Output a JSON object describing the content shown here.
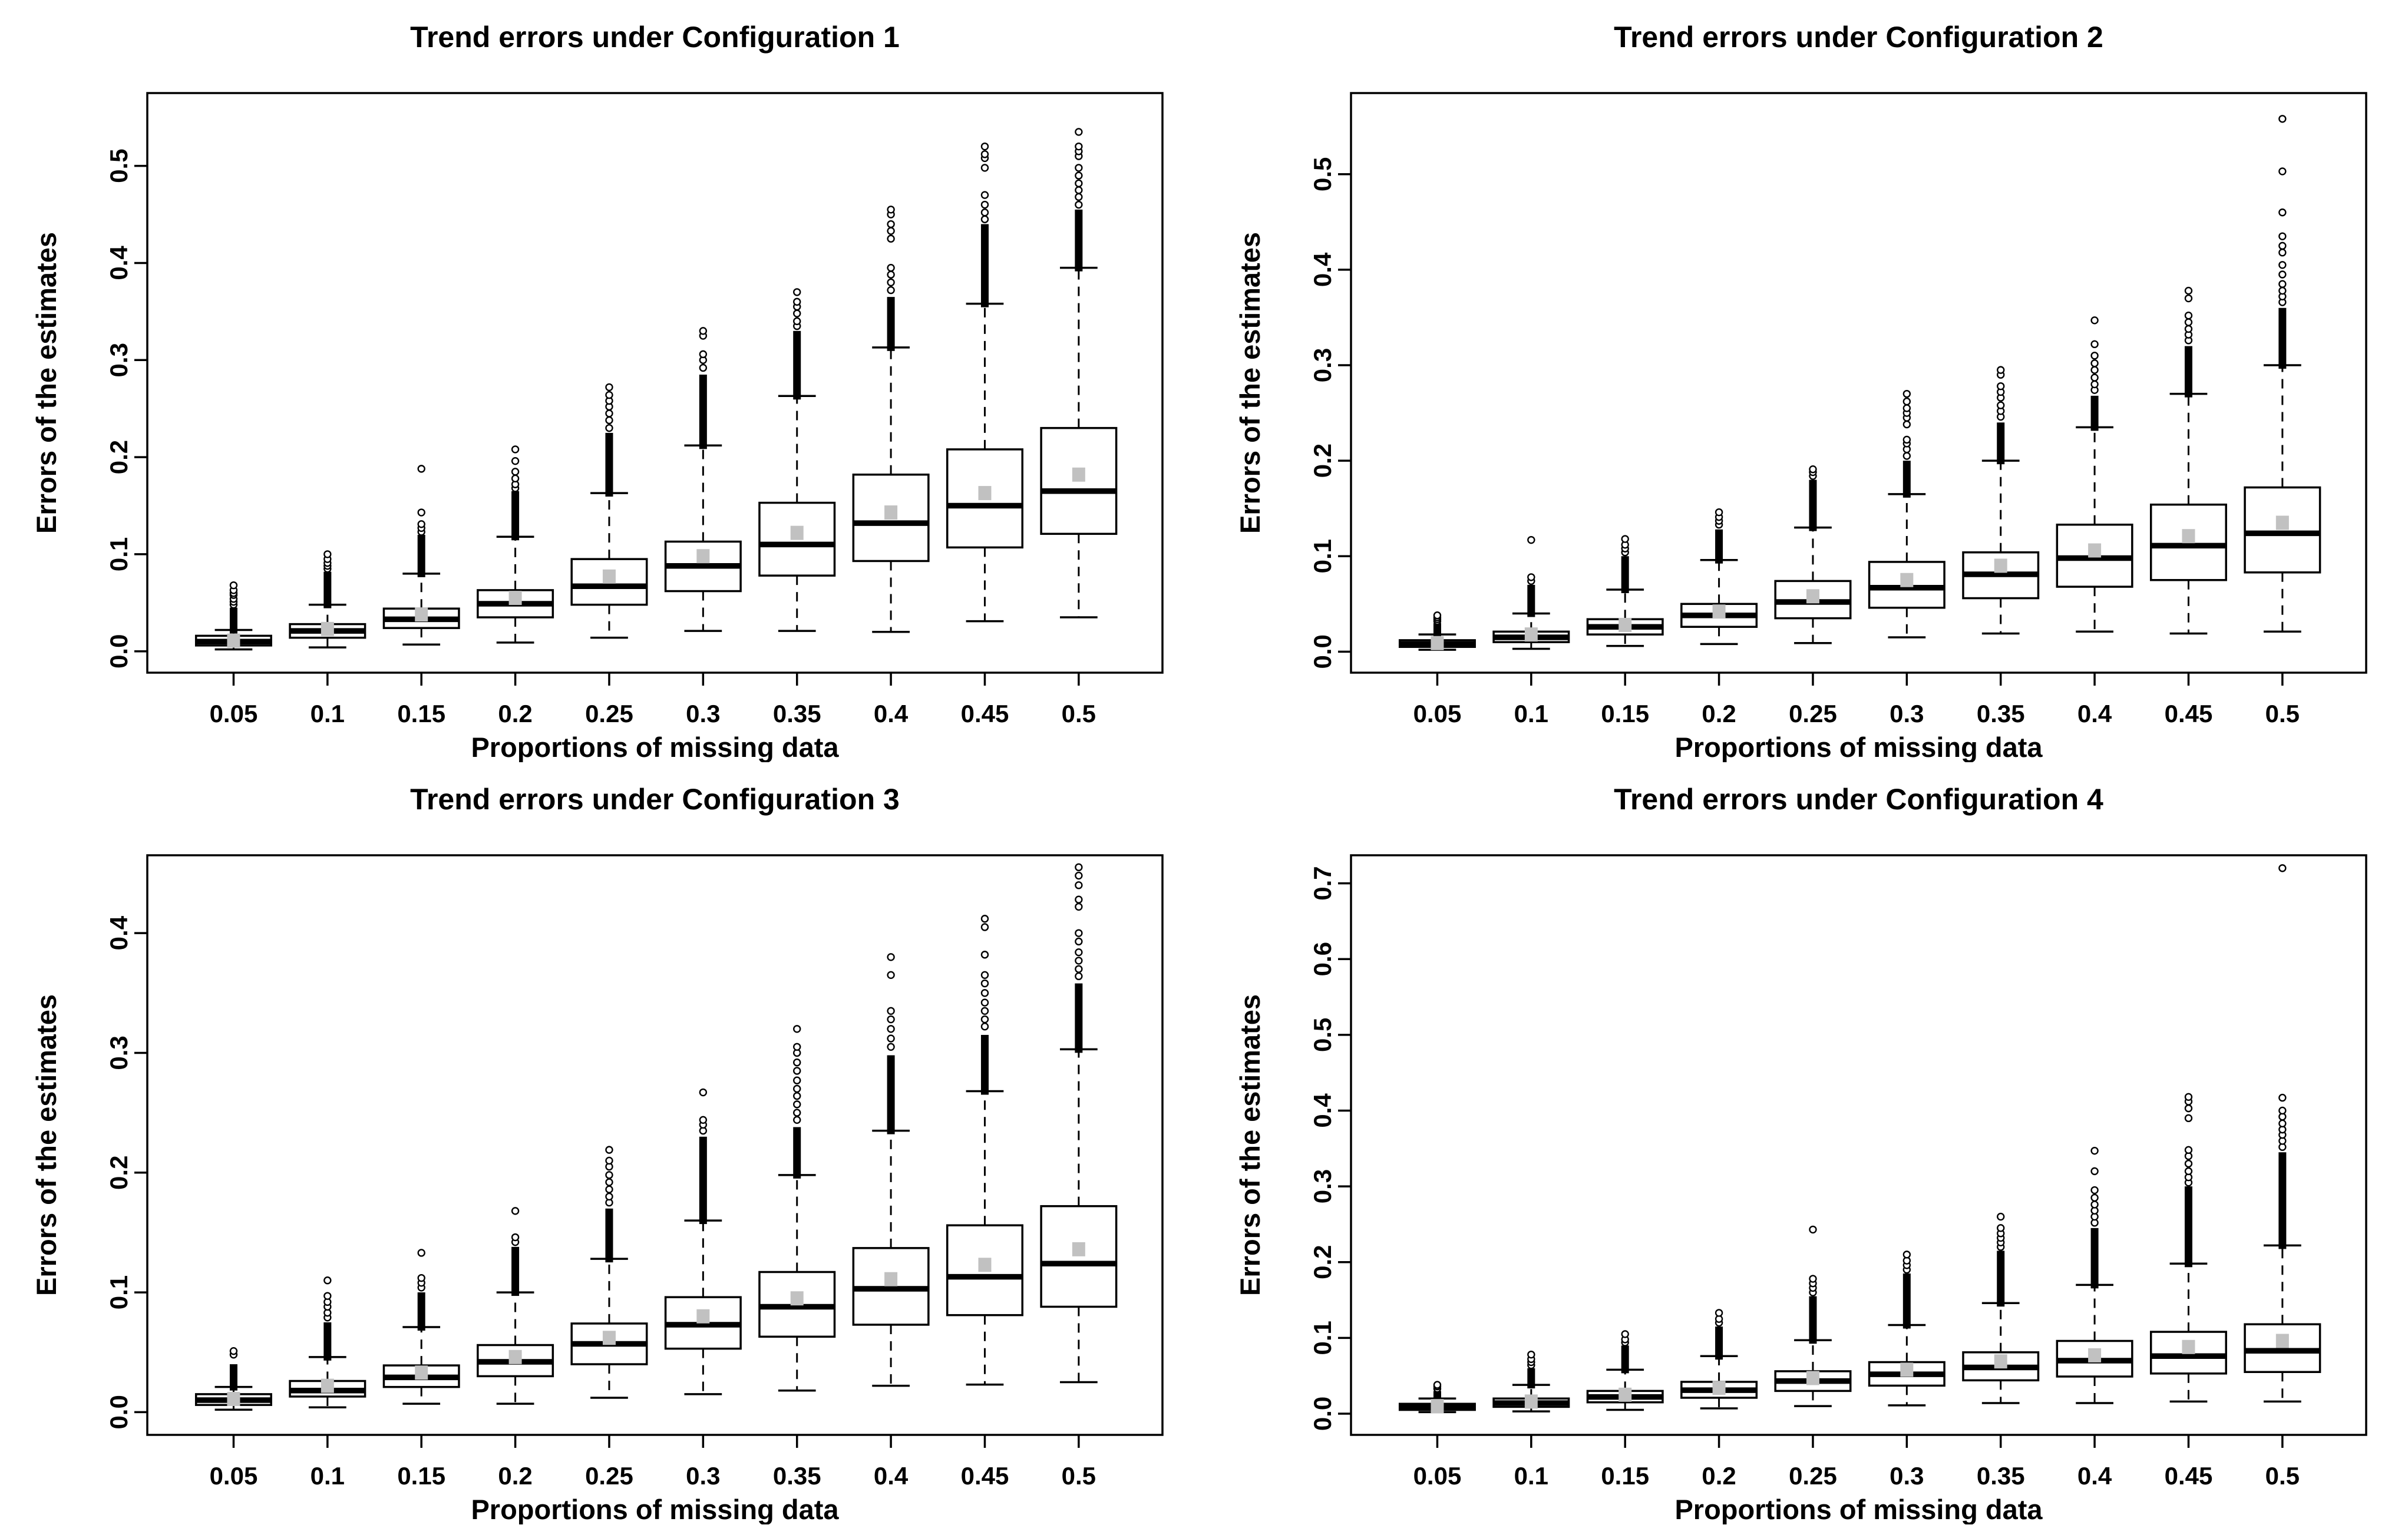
{
  "page": {
    "background": "#ffffff"
  },
  "style": {
    "line_color": "#000000",
    "box_fill": "#ffffff",
    "mean_square_color": "#c1c1c1",
    "outlier_circle_fill": "#ffffff"
  },
  "chart_data": [
    {
      "type": "boxplot",
      "title": "Trend errors under Configuration 1",
      "xlabel": "Proportions of missing data",
      "ylabel": "Errors of the estimates",
      "legend": "none",
      "grid": false,
      "x_tick_labels": [
        "0.05",
        "0.1",
        "0.15",
        "0.2",
        "0.25",
        "0.3",
        "0.35",
        "0.4",
        "0.45",
        "0.5"
      ],
      "y_ticks": [
        0.0,
        0.1,
        0.2,
        0.3,
        0.4,
        0.5
      ],
      "y_tick_labels": [
        "0.0",
        "0.1",
        "0.2",
        "0.3",
        "0.4",
        "0.5"
      ],
      "ylim": [
        -0.022,
        0.575
      ],
      "boxes": [
        {
          "x": "0.05",
          "low": 0.002,
          "q1": 0.006,
          "med": 0.01,
          "q3": 0.016,
          "high": 0.022,
          "mean": 0.011,
          "col": 0.045,
          "out": [
            0.048,
            0.051,
            0.054,
            0.058,
            0.06,
            0.063,
            0.068
          ]
        },
        {
          "x": "0.1",
          "low": 0.004,
          "q1": 0.014,
          "med": 0.021,
          "q3": 0.028,
          "high": 0.048,
          "mean": 0.023,
          "col": 0.082,
          "out": [
            0.085,
            0.088,
            0.091,
            0.095,
            0.1
          ]
        },
        {
          "x": "0.15",
          "low": 0.007,
          "q1": 0.024,
          "med": 0.033,
          "q3": 0.044,
          "high": 0.08,
          "mean": 0.038,
          "col": 0.12,
          "out": [
            0.123,
            0.127,
            0.131,
            0.143,
            0.188
          ]
        },
        {
          "x": "0.2",
          "low": 0.009,
          "q1": 0.035,
          "med": 0.049,
          "q3": 0.063,
          "high": 0.118,
          "mean": 0.055,
          "col": 0.165,
          "out": [
            0.168,
            0.172,
            0.178,
            0.185,
            0.196,
            0.208
          ]
        },
        {
          "x": "0.25",
          "low": 0.014,
          "q1": 0.048,
          "med": 0.067,
          "q3": 0.095,
          "high": 0.163,
          "mean": 0.077,
          "col": 0.225,
          "out": [
            0.23,
            0.238,
            0.245,
            0.252,
            0.258,
            0.264,
            0.272
          ]
        },
        {
          "x": "0.3",
          "low": 0.021,
          "q1": 0.062,
          "med": 0.088,
          "q3": 0.113,
          "high": 0.212,
          "mean": 0.098,
          "col": 0.285,
          "out": [
            0.292,
            0.3,
            0.306,
            0.325,
            0.33
          ]
        },
        {
          "x": "0.35",
          "low": 0.021,
          "q1": 0.078,
          "med": 0.11,
          "q3": 0.153,
          "high": 0.263,
          "mean": 0.122,
          "col": 0.33,
          "out": [
            0.335,
            0.34,
            0.348,
            0.355,
            0.36,
            0.37
          ]
        },
        {
          "x": "0.4",
          "low": 0.02,
          "q1": 0.093,
          "med": 0.132,
          "q3": 0.182,
          "high": 0.313,
          "mean": 0.143,
          "col": 0.365,
          "out": [
            0.372,
            0.38,
            0.388,
            0.395,
            0.425,
            0.433,
            0.44,
            0.45,
            0.455
          ]
        },
        {
          "x": "0.45",
          "low": 0.031,
          "q1": 0.107,
          "med": 0.15,
          "q3": 0.208,
          "high": 0.358,
          "mean": 0.163,
          "col": 0.44,
          "out": [
            0.445,
            0.452,
            0.46,
            0.47,
            0.498,
            0.508,
            0.512,
            0.52
          ]
        },
        {
          "x": "0.5",
          "low": 0.035,
          "q1": 0.121,
          "med": 0.165,
          "q3": 0.23,
          "high": 0.395,
          "mean": 0.182,
          "col": 0.455,
          "out": [
            0.46,
            0.468,
            0.475,
            0.482,
            0.49,
            0.498,
            0.51,
            0.515,
            0.52,
            0.535
          ]
        }
      ]
    },
    {
      "type": "boxplot",
      "title": "Trend errors under Configuration 2",
      "xlabel": "Proportions of missing data",
      "ylabel": "Errors of the estimates",
      "legend": "none",
      "grid": false,
      "x_tick_labels": [
        "0.05",
        "0.1",
        "0.15",
        "0.2",
        "0.25",
        "0.3",
        "0.35",
        "0.4",
        "0.45",
        "0.5"
      ],
      "y_ticks": [
        0.0,
        0.1,
        0.2,
        0.3,
        0.4,
        0.5
      ],
      "y_tick_labels": [
        "0.0",
        "0.1",
        "0.2",
        "0.3",
        "0.4",
        "0.5"
      ],
      "ylim": [
        -0.022,
        0.585
      ],
      "boxes": [
        {
          "x": "0.05",
          "low": 0.002,
          "q1": 0.005,
          "med": 0.008,
          "q3": 0.012,
          "high": 0.018,
          "mean": 0.009,
          "col": 0.03,
          "out": [
            0.032,
            0.034,
            0.036,
            0.038
          ]
        },
        {
          "x": "0.1",
          "low": 0.003,
          "q1": 0.01,
          "med": 0.015,
          "q3": 0.021,
          "high": 0.04,
          "mean": 0.018,
          "col": 0.07,
          "out": [
            0.074,
            0.078,
            0.117
          ]
        },
        {
          "x": "0.15",
          "low": 0.006,
          "q1": 0.018,
          "med": 0.026,
          "q3": 0.034,
          "high": 0.065,
          "mean": 0.028,
          "col": 0.1,
          "out": [
            0.104,
            0.108,
            0.112,
            0.118
          ]
        },
        {
          "x": "0.2",
          "low": 0.008,
          "q1": 0.026,
          "med": 0.038,
          "q3": 0.05,
          "high": 0.096,
          "mean": 0.042,
          "col": 0.128,
          "out": [
            0.133,
            0.137,
            0.141,
            0.146
          ]
        },
        {
          "x": "0.25",
          "low": 0.009,
          "q1": 0.035,
          "med": 0.052,
          "q3": 0.074,
          "high": 0.13,
          "mean": 0.058,
          "col": 0.18,
          "out": [
            0.184,
            0.188,
            0.191
          ]
        },
        {
          "x": "0.3",
          "low": 0.015,
          "q1": 0.046,
          "med": 0.067,
          "q3": 0.094,
          "high": 0.165,
          "mean": 0.075,
          "col": 0.2,
          "out": [
            0.205,
            0.212,
            0.218,
            0.222,
            0.238,
            0.245,
            0.25,
            0.255,
            0.262,
            0.27
          ]
        },
        {
          "x": "0.35",
          "low": 0.019,
          "q1": 0.056,
          "med": 0.081,
          "q3": 0.104,
          "high": 0.2,
          "mean": 0.09,
          "col": 0.24,
          "out": [
            0.246,
            0.252,
            0.258,
            0.266,
            0.272,
            0.278,
            0.29,
            0.295
          ]
        },
        {
          "x": "0.4",
          "low": 0.021,
          "q1": 0.068,
          "med": 0.098,
          "q3": 0.133,
          "high": 0.235,
          "mean": 0.106,
          "col": 0.268,
          "out": [
            0.274,
            0.28,
            0.287,
            0.295,
            0.302,
            0.31,
            0.322,
            0.347
          ]
        },
        {
          "x": "0.45",
          "low": 0.019,
          "q1": 0.075,
          "med": 0.111,
          "q3": 0.154,
          "high": 0.27,
          "mean": 0.121,
          "col": 0.32,
          "out": [
            0.326,
            0.332,
            0.338,
            0.345,
            0.352,
            0.37,
            0.378
          ]
        },
        {
          "x": "0.5",
          "low": 0.021,
          "q1": 0.083,
          "med": 0.124,
          "q3": 0.172,
          "high": 0.3,
          "mean": 0.135,
          "col": 0.36,
          "out": [
            0.366,
            0.372,
            0.378,
            0.385,
            0.395,
            0.405,
            0.418,
            0.425,
            0.435,
            0.46,
            0.503,
            0.558
          ]
        }
      ]
    },
    {
      "type": "boxplot",
      "title": "Trend errors under Configuration 3",
      "xlabel": "Proportions of missing data",
      "ylabel": "Errors of the estimates",
      "legend": "none",
      "grid": false,
      "x_tick_labels": [
        "0.05",
        "0.1",
        "0.15",
        "0.2",
        "0.25",
        "0.3",
        "0.35",
        "0.4",
        "0.45",
        "0.5"
      ],
      "y_ticks": [
        0.0,
        0.1,
        0.2,
        0.3,
        0.4
      ],
      "y_tick_labels": [
        "0.0",
        "0.1",
        "0.2",
        "0.3",
        "0.4"
      ],
      "ylim": [
        -0.019,
        0.465
      ],
      "boxes": [
        {
          "x": "0.05",
          "low": 0.002,
          "q1": 0.006,
          "med": 0.01,
          "q3": 0.015,
          "high": 0.021,
          "mean": 0.011,
          "col": 0.04,
          "out": [
            0.048,
            0.051
          ]
        },
        {
          "x": "0.1",
          "low": 0.004,
          "q1": 0.013,
          "med": 0.018,
          "q3": 0.026,
          "high": 0.046,
          "mean": 0.022,
          "col": 0.075,
          "out": [
            0.079,
            0.083,
            0.088,
            0.092,
            0.097,
            0.11
          ]
        },
        {
          "x": "0.15",
          "low": 0.007,
          "q1": 0.021,
          "med": 0.029,
          "q3": 0.039,
          "high": 0.071,
          "mean": 0.033,
          "col": 0.1,
          "out": [
            0.104,
            0.108,
            0.112,
            0.133
          ]
        },
        {
          "x": "0.2",
          "low": 0.007,
          "q1": 0.03,
          "med": 0.042,
          "q3": 0.056,
          "high": 0.1,
          "mean": 0.046,
          "col": 0.138,
          "out": [
            0.142,
            0.146,
            0.168
          ]
        },
        {
          "x": "0.25",
          "low": 0.012,
          "q1": 0.04,
          "med": 0.057,
          "q3": 0.074,
          "high": 0.128,
          "mean": 0.062,
          "col": 0.17,
          "out": [
            0.175,
            0.18,
            0.186,
            0.192,
            0.198,
            0.205,
            0.21,
            0.219
          ]
        },
        {
          "x": "0.3",
          "low": 0.015,
          "q1": 0.053,
          "med": 0.073,
          "q3": 0.096,
          "high": 0.16,
          "mean": 0.08,
          "col": 0.23,
          "out": [
            0.235,
            0.24,
            0.244,
            0.267
          ]
        },
        {
          "x": "0.35",
          "low": 0.018,
          "q1": 0.063,
          "med": 0.088,
          "q3": 0.117,
          "high": 0.198,
          "mean": 0.095,
          "col": 0.238,
          "out": [
            0.244,
            0.25,
            0.257,
            0.264,
            0.27,
            0.277,
            0.285,
            0.292,
            0.3,
            0.305,
            0.32
          ]
        },
        {
          "x": "0.4",
          "low": 0.022,
          "q1": 0.073,
          "med": 0.103,
          "q3": 0.137,
          "high": 0.235,
          "mean": 0.111,
          "col": 0.298,
          "out": [
            0.305,
            0.312,
            0.32,
            0.328,
            0.335,
            0.365,
            0.38
          ]
        },
        {
          "x": "0.45",
          "low": 0.023,
          "q1": 0.081,
          "med": 0.113,
          "q3": 0.156,
          "high": 0.268,
          "mean": 0.123,
          "col": 0.315,
          "out": [
            0.322,
            0.328,
            0.335,
            0.342,
            0.35,
            0.358,
            0.365,
            0.382,
            0.405,
            0.412
          ]
        },
        {
          "x": "0.5",
          "low": 0.025,
          "q1": 0.088,
          "med": 0.124,
          "q3": 0.172,
          "high": 0.303,
          "mean": 0.136,
          "col": 0.358,
          "out": [
            0.364,
            0.37,
            0.377,
            0.384,
            0.393,
            0.4,
            0.422,
            0.428,
            0.44,
            0.448,
            0.455
          ]
        }
      ]
    },
    {
      "type": "boxplot",
      "title": "Trend errors under Configuration 4",
      "xlabel": "Proportions of missing data",
      "ylabel": "Errors of the estimates",
      "legend": "none",
      "grid": false,
      "x_tick_labels": [
        "0.05",
        "0.1",
        "0.15",
        "0.2",
        "0.25",
        "0.3",
        "0.35",
        "0.4",
        "0.45",
        "0.5"
      ],
      "y_ticks": [
        0.0,
        0.1,
        0.2,
        0.3,
        0.4,
        0.5,
        0.6,
        0.7
      ],
      "y_tick_labels": [
        "0.0",
        "0.1",
        "0.2",
        "0.3",
        "0.4",
        "0.5",
        "0.6",
        "0.7"
      ],
      "ylim": [
        -0.028,
        0.737
      ],
      "boxes": [
        {
          "x": "0.05",
          "low": 0.002,
          "q1": 0.005,
          "med": 0.008,
          "q3": 0.013,
          "high": 0.02,
          "mean": 0.01,
          "col": 0.03,
          "out": [
            0.033,
            0.036,
            0.038
          ]
        },
        {
          "x": "0.1",
          "low": 0.003,
          "q1": 0.009,
          "med": 0.014,
          "q3": 0.02,
          "high": 0.038,
          "mean": 0.016,
          "col": 0.06,
          "out": [
            0.064,
            0.068,
            0.072,
            0.078
          ]
        },
        {
          "x": "0.15",
          "low": 0.005,
          "q1": 0.015,
          "med": 0.022,
          "q3": 0.03,
          "high": 0.058,
          "mean": 0.025,
          "col": 0.09,
          "out": [
            0.094,
            0.098,
            0.105
          ]
        },
        {
          "x": "0.2",
          "low": 0.007,
          "q1": 0.021,
          "med": 0.031,
          "q3": 0.042,
          "high": 0.076,
          "mean": 0.034,
          "col": 0.115,
          "out": [
            0.12,
            0.125,
            0.133
          ]
        },
        {
          "x": "0.25",
          "low": 0.01,
          "q1": 0.03,
          "med": 0.043,
          "q3": 0.056,
          "high": 0.097,
          "mean": 0.047,
          "col": 0.155,
          "out": [
            0.16,
            0.166,
            0.172,
            0.178,
            0.243
          ]
        },
        {
          "x": "0.3",
          "low": 0.011,
          "q1": 0.037,
          "med": 0.052,
          "q3": 0.068,
          "high": 0.117,
          "mean": 0.058,
          "col": 0.185,
          "out": [
            0.19,
            0.196,
            0.202,
            0.21
          ]
        },
        {
          "x": "0.35",
          "low": 0.014,
          "q1": 0.044,
          "med": 0.061,
          "q3": 0.081,
          "high": 0.146,
          "mean": 0.069,
          "col": 0.215,
          "out": [
            0.22,
            0.226,
            0.232,
            0.238,
            0.245,
            0.26
          ]
        },
        {
          "x": "0.4",
          "low": 0.014,
          "q1": 0.049,
          "med": 0.07,
          "q3": 0.096,
          "high": 0.17,
          "mean": 0.077,
          "col": 0.245,
          "out": [
            0.252,
            0.26,
            0.268,
            0.276,
            0.285,
            0.295,
            0.32,
            0.347
          ]
        },
        {
          "x": "0.45",
          "low": 0.016,
          "q1": 0.053,
          "med": 0.076,
          "q3": 0.108,
          "high": 0.198,
          "mean": 0.088,
          "col": 0.3,
          "out": [
            0.305,
            0.312,
            0.32,
            0.33,
            0.34,
            0.348,
            0.39,
            0.403,
            0.412,
            0.418
          ]
        },
        {
          "x": "0.5",
          "low": 0.016,
          "q1": 0.055,
          "med": 0.083,
          "q3": 0.118,
          "high": 0.222,
          "mean": 0.096,
          "col": 0.345,
          "out": [
            0.352,
            0.36,
            0.368,
            0.375,
            0.383,
            0.392,
            0.4,
            0.417,
            0.72
          ]
        }
      ]
    }
  ]
}
